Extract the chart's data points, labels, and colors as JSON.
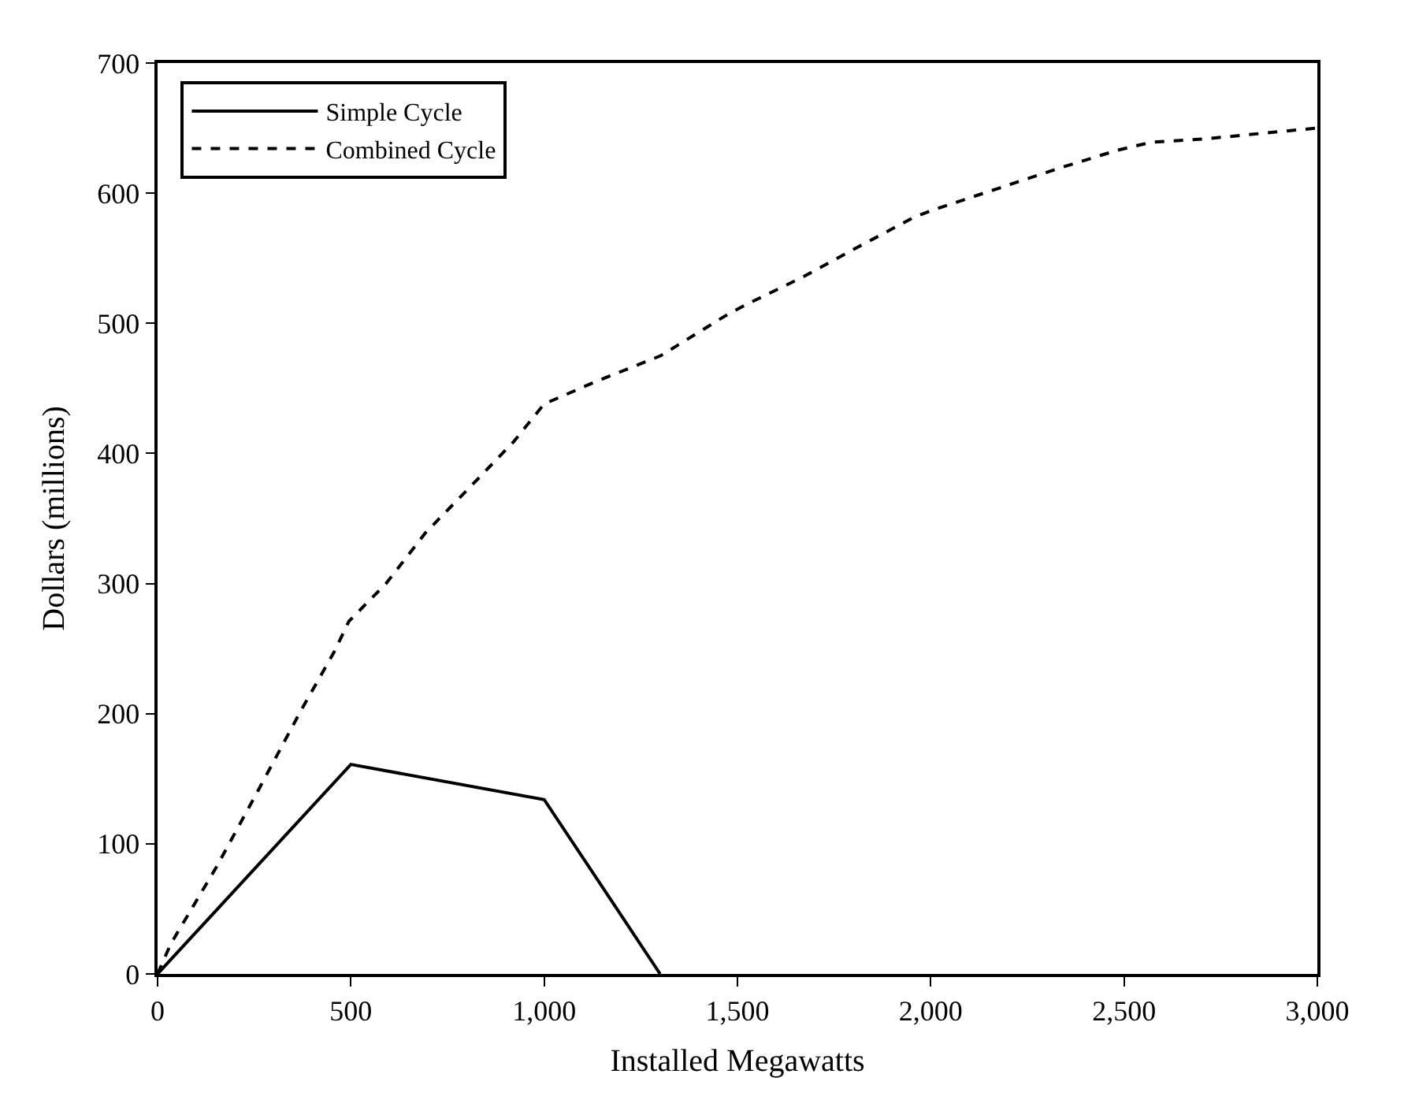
{
  "chart_data": {
    "type": "line",
    "xlabel": "Installed Megawatts",
    "ylabel": "Dollars (millions)",
    "xlim": [
      0,
      3000
    ],
    "xticks": [
      0,
      {
        "value": 500,
        "label": "500"
      },
      {
        "value": 1000,
        "label": "1,000"
      },
      {
        "value": 1500,
        "label": "1,500"
      },
      {
        "value": 2000,
        "label": "2,000"
      },
      {
        "value": 2500,
        "label": "2,500"
      },
      {
        "value": 3000,
        "label": "3,000"
      }
    ],
    "ylim": [
      0,
      700
    ],
    "yticks": [
      0,
      100,
      200,
      300,
      400,
      500,
      600,
      700
    ],
    "legend": "top left",
    "marker": "none",
    "series": [
      {
        "name": "Simple Cycle",
        "color": "#000000",
        "line_style": "solid",
        "x": [
          0,
          500,
          1000,
          1300
        ],
        "values": [
          0,
          161,
          134,
          0
        ]
      },
      {
        "name": "Combined Cycle",
        "color": "#000000",
        "line_style": "dashed",
        "x": [
          0,
          34,
          152,
          262,
          372,
          456,
          495,
          591,
          693,
          811,
          921,
          1000,
          1132,
          1301,
          1470,
          1520,
          1672,
          1808,
          1960,
          2025,
          2178,
          2330,
          2483,
          2568,
          2721,
          2891,
          3000
        ],
        "values": [
          0,
          23,
          82,
          142,
          203,
          247,
          271,
          300,
          339,
          375,
          409,
          438,
          455,
          475,
          506,
          514,
          536,
          558,
          582,
          589,
          604,
          619,
          633,
          639,
          642,
          647,
          650
        ]
      }
    ]
  }
}
